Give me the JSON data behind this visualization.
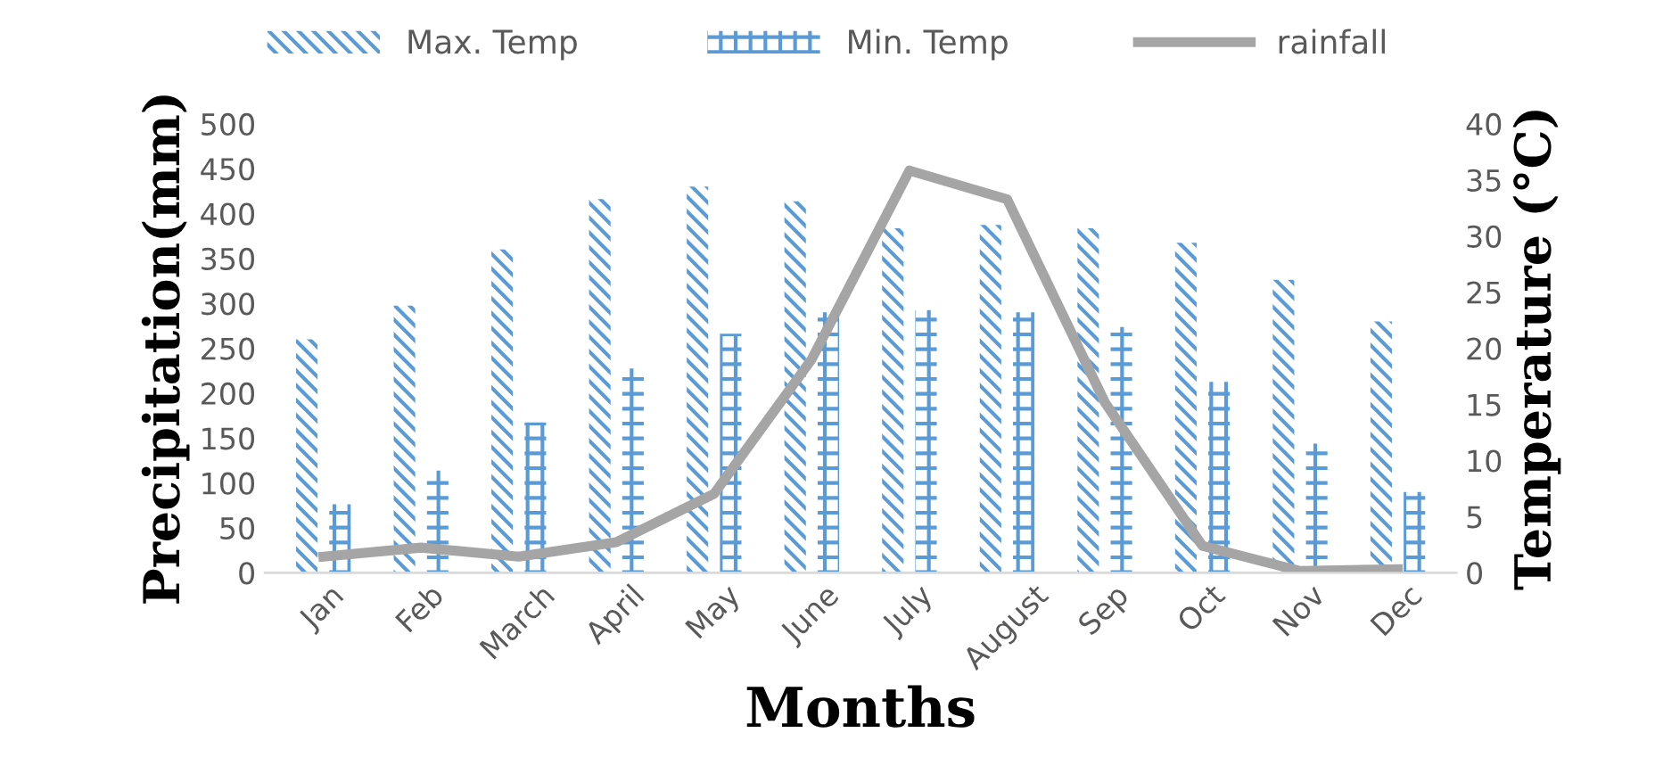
{
  "chart_data": {
    "type": "bar",
    "xlabel": "Months",
    "ylabel": "Precipitation(mm)",
    "y2label": "Temperature (°C)",
    "categories": [
      "Jan",
      "Feb",
      "March",
      "April",
      "May",
      "June",
      "July",
      "August",
      "Sep",
      "Oct",
      "Nov",
      "Dec"
    ],
    "series": [
      {
        "name": "Max. Temp",
        "axis": "y2",
        "color": "#5b9bd5",
        "values": [
          20.8,
          23.8,
          28.8,
          33.3,
          34.4,
          33.1,
          30.7,
          31.0,
          30.7,
          29.4,
          26.1,
          22.4
        ]
      },
      {
        "name": "Min. Temp",
        "axis": "y2",
        "color": "#5b9bd5",
        "values": [
          6.1,
          9.1,
          13.4,
          18.2,
          21.3,
          23.2,
          23.4,
          23.2,
          21.9,
          17.0,
          11.5,
          7.2
        ]
      },
      {
        "name": "rainfall",
        "type": "line",
        "axis": "y",
        "color": "#a5a5a5",
        "values": [
          18,
          28,
          18,
          34,
          88,
          238,
          448,
          416,
          190,
          30,
          2,
          4
        ]
      }
    ],
    "ylim": [
      0,
      500
    ],
    "yticks": [
      0,
      50,
      100,
      150,
      200,
      250,
      300,
      350,
      400,
      450,
      500
    ],
    "y2lim": [
      0,
      40
    ],
    "y2ticks": [
      0,
      5,
      10,
      15,
      20,
      25,
      30,
      35,
      40
    ],
    "legend": "top",
    "grid": false,
    "marker": "none",
    "line_style": "solid"
  }
}
